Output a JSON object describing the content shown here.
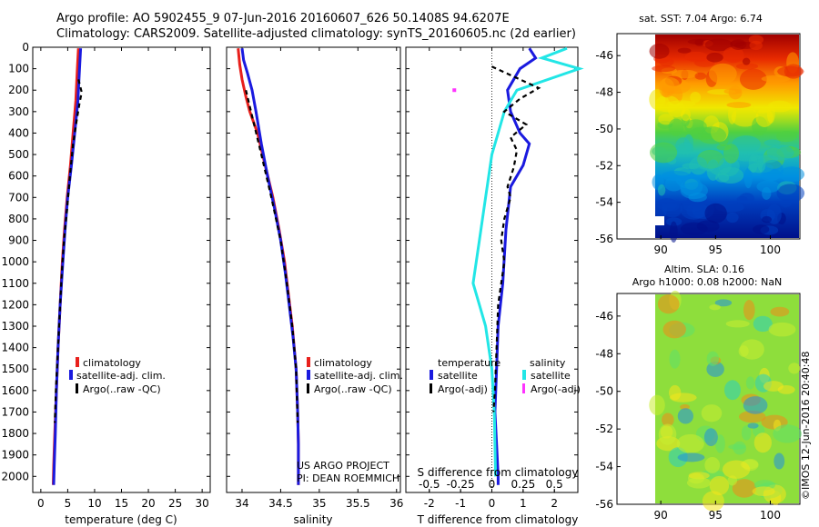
{
  "header": {
    "line1": "Argo profile: AO 5902455_9 07-Jun-2016 20160607_626 50.1408S 94.6207E",
    "line2": "Climatology: CARS2009. Satellite-adjusted climatology: synTS_20160605.nc (2d earlier)"
  },
  "colors": {
    "climatology": "#e8201c",
    "satellite": "#1a1adf",
    "argo": "#000000",
    "sal_satellite": "#22e6e6",
    "sal_argo": "#ff33ff"
  },
  "chart_data": [
    {
      "type": "line",
      "xlabel": "temperature (deg C)",
      "xticks": [
        0,
        5,
        10,
        15,
        20,
        25,
        30
      ],
      "xlim": [
        -1.5,
        31.5
      ],
      "ylim": [
        0,
        2075
      ],
      "yticks": [
        0,
        100,
        200,
        300,
        400,
        500,
        600,
        700,
        800,
        900,
        1000,
        1100,
        1200,
        1300,
        1400,
        1500,
        1600,
        1700,
        1800,
        1900,
        2000
      ],
      "reversed_y": true,
      "legend_placement": "lower-center",
      "series": [
        {
          "name": "climatology",
          "style": "solid",
          "points": [
            [
              7.0,
              5
            ],
            [
              6.8,
              100
            ],
            [
              6.5,
              250
            ],
            [
              6.0,
              400
            ],
            [
              5.5,
              550
            ],
            [
              4.9,
              700
            ],
            [
              4.4,
              850
            ],
            [
              4.0,
              1000
            ],
            [
              3.6,
              1200
            ],
            [
              3.2,
              1400
            ],
            [
              2.9,
              1600
            ],
            [
              2.6,
              1800
            ],
            [
              2.4,
              1950
            ],
            [
              2.3,
              2040
            ]
          ]
        },
        {
          "name": "satellite-adj. clim.",
          "style": "solid",
          "points": [
            [
              7.4,
              5
            ],
            [
              7.2,
              100
            ],
            [
              6.9,
              250
            ],
            [
              6.3,
              400
            ],
            [
              5.7,
              550
            ],
            [
              5.0,
              700
            ],
            [
              4.5,
              850
            ],
            [
              4.1,
              1000
            ],
            [
              3.6,
              1200
            ],
            [
              3.2,
              1400
            ],
            [
              2.9,
              1600
            ],
            [
              2.7,
              1800
            ],
            [
              2.5,
              1950
            ],
            [
              2.4,
              2040
            ]
          ]
        },
        {
          "name": "Argo(..raw -QC)",
          "style": "dashed",
          "points": [
            [
              7.0,
              150
            ],
            [
              7.6,
              210
            ],
            [
              7.2,
              260
            ],
            [
              6.6,
              350
            ],
            [
              6.0,
              450
            ],
            [
              5.4,
              600
            ],
            [
              4.9,
              750
            ],
            [
              4.3,
              900
            ],
            [
              3.9,
              1050
            ],
            [
              3.5,
              1250
            ],
            [
              3.1,
              1450
            ],
            [
              2.8,
              1600
            ],
            [
              2.6,
              1750
            ]
          ]
        }
      ],
      "legend": [
        "climatology",
        "satellite-adj. clim.",
        "Argo(..raw -QC)"
      ]
    },
    {
      "type": "line",
      "xlabel": "salinity",
      "xticks": [
        34,
        34.5,
        35,
        35.5,
        36
      ],
      "xlim": [
        33.8,
        36.05
      ],
      "ylim": [
        0,
        2075
      ],
      "reversed_y": true,
      "legend_placement": "lower-right",
      "annotation": [
        "US ARGO PROJECT",
        "PI: DEAN ROEMMICH"
      ],
      "series": [
        {
          "name": "climatology",
          "style": "solid",
          "points": [
            [
              33.95,
              5
            ],
            [
              33.97,
              80
            ],
            [
              34.0,
              150
            ],
            [
              34.05,
              230
            ],
            [
              34.1,
              300
            ],
            [
              34.2,
              400
            ],
            [
              34.3,
              550
            ],
            [
              34.4,
              700
            ],
            [
              34.48,
              850
            ],
            [
              34.55,
              1000
            ],
            [
              34.6,
              1150
            ],
            [
              34.65,
              1300
            ],
            [
              34.7,
              1500
            ],
            [
              34.72,
              1700
            ],
            [
              34.73,
              1850
            ],
            [
              34.73,
              2040
            ]
          ]
        },
        {
          "name": "satellite-adj. clim.",
          "style": "solid",
          "points": [
            [
              34.0,
              5
            ],
            [
              34.02,
              60
            ],
            [
              34.07,
              120
            ],
            [
              34.13,
              200
            ],
            [
              34.18,
              300
            ],
            [
              34.25,
              450
            ],
            [
              34.33,
              600
            ],
            [
              34.42,
              750
            ],
            [
              34.5,
              900
            ],
            [
              34.56,
              1050
            ],
            [
              34.61,
              1200
            ],
            [
              34.66,
              1350
            ],
            [
              34.7,
              1500
            ],
            [
              34.72,
              1700
            ],
            [
              34.73,
              1850
            ],
            [
              34.73,
              2040
            ]
          ]
        },
        {
          "name": "Argo(..raw -QC)",
          "style": "dashed",
          "points": [
            [
              34.05,
              200
            ],
            [
              34.15,
              350
            ],
            [
              34.25,
              500
            ],
            [
              34.38,
              700
            ],
            [
              34.5,
              900
            ],
            [
              34.58,
              1100
            ],
            [
              34.65,
              1300
            ],
            [
              34.7,
              1500
            ],
            [
              34.72,
              1750
            ]
          ]
        }
      ],
      "legend": [
        "climatology",
        "satellite-adj. clim.",
        "Argo(..raw -QC)"
      ]
    },
    {
      "type": "line",
      "xlabel": "T difference from climatology",
      "xticks": [
        -2,
        -1,
        0,
        1,
        2
      ],
      "xlim": [
        -2.75,
        2.75
      ],
      "top_axis_label": "S difference from climatology",
      "top_ticks": [
        -0.5,
        -0.25,
        0,
        0.25,
        0.5
      ],
      "top_tick_labels": [
        "-0.5",
        "-0.25",
        "0",
        "0.25",
        "0.5"
      ],
      "ylim": [
        0,
        2075
      ],
      "reversed_y": true,
      "legend_placement": "lower-center",
      "legend_titles": [
        "temperature",
        "salinity"
      ],
      "series": [
        {
          "name": "satellite",
          "group": "temperature",
          "style": "solid",
          "points": [
            [
              1.2,
              5
            ],
            [
              1.4,
              50
            ],
            [
              0.9,
              100
            ],
            [
              0.5,
              200
            ],
            [
              0.6,
              300
            ],
            [
              0.9,
              400
            ],
            [
              1.2,
              450
            ],
            [
              1.0,
              550
            ],
            [
              0.6,
              650
            ],
            [
              0.45,
              850
            ],
            [
              0.35,
              1100
            ],
            [
              0.2,
              1300
            ],
            [
              0.15,
              1500
            ],
            [
              0.1,
              1700
            ],
            [
              0.15,
              1850
            ],
            [
              0.2,
              2000
            ],
            [
              0.2,
              2040
            ]
          ]
        },
        {
          "name": "satellite",
          "group": "salinity",
          "style": "solid",
          "points": [
            [
              0.6,
              5
            ],
            [
              0.4,
              50
            ],
            [
              0.7,
              100
            ],
            [
              0.2,
              200
            ],
            [
              0.1,
              300
            ],
            [
              0.05,
              400
            ],
            [
              0.0,
              500
            ],
            [
              -0.05,
              700
            ],
            [
              -0.1,
              900
            ],
            [
              -0.15,
              1100
            ],
            [
              -0.1,
              1200
            ],
            [
              -0.05,
              1300
            ],
            [
              0.0,
              1500
            ],
            [
              0.02,
              1700
            ],
            [
              0.03,
              2000
            ]
          ]
        },
        {
          "name": "Argo(-adj)",
          "group": "temperature",
          "style": "dashed",
          "points": [
            [
              0.0,
              90
            ],
            [
              0.6,
              130
            ],
            [
              1.5,
              190
            ],
            [
              0.9,
              240
            ],
            [
              0.4,
              300
            ],
            [
              1.1,
              360
            ],
            [
              0.6,
              420
            ],
            [
              0.8,
              480
            ],
            [
              0.7,
              560
            ],
            [
              0.5,
              650
            ],
            [
              0.6,
              700
            ],
            [
              0.4,
              800
            ],
            [
              0.3,
              900
            ],
            [
              0.4,
              1000
            ],
            [
              0.3,
              1100
            ],
            [
              0.2,
              1200
            ],
            [
              0.15,
              1400
            ],
            [
              0.1,
              1600
            ],
            [
              0.05,
              1700
            ]
          ]
        },
        {
          "name": "Argo(-adj)",
          "group": "salinity",
          "style": "dashed",
          "points": [
            [
              -0.3,
              200
            ]
          ]
        }
      ],
      "legend": [
        "satellite",
        "Argo(-adj)",
        "satellite",
        "Argo(-adj)"
      ]
    },
    {
      "type": "heatmap",
      "title": "sat. SST: 7.04  Argo: 6.74",
      "xticks": [
        90,
        95,
        100
      ],
      "yticks": [
        -46,
        -48,
        -50,
        -52,
        -54,
        -56
      ],
      "xlim": [
        86,
        102.7
      ],
      "ylim": [
        -56,
        -44.8
      ],
      "colormap": "jet"
    },
    {
      "type": "heatmap",
      "title": "Altim. SLA: 0.16",
      "subtitle": "Argo h1000: 0.08 h2000: NaN",
      "xticks": [
        90,
        95,
        100
      ],
      "yticks": [
        -46,
        -48,
        -50,
        -52,
        -54,
        -56
      ],
      "xlim": [
        86,
        102.7
      ],
      "ylim": [
        -56,
        -44.8
      ],
      "colormap": "jet"
    }
  ],
  "watermark": "©IMOS 12-Jun-2016 20:40:48"
}
